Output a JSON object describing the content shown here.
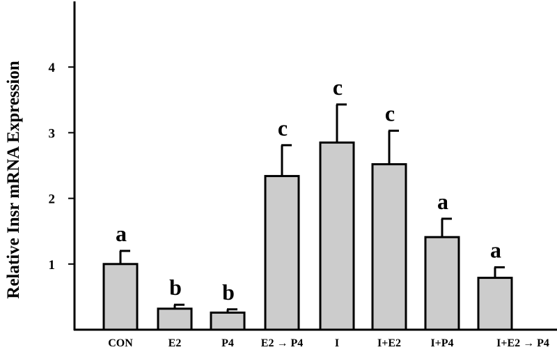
{
  "chart_data": {
    "type": "bar",
    "title": "",
    "xlabel": "",
    "ylabel": "Relative Insr mRNA Expression",
    "ylim": [
      0,
      5
    ],
    "yticks": [
      1,
      2,
      3,
      4
    ],
    "categories": [
      "CON",
      "E2",
      "P4",
      "E2 → P4",
      "I",
      "I+E2",
      "I+P4",
      "I+E2 → P4"
    ],
    "values": [
      1.0,
      0.32,
      0.26,
      2.34,
      2.85,
      2.52,
      1.41,
      0.79
    ],
    "errors": [
      0.2,
      0.06,
      0.05,
      0.47,
      0.58,
      0.51,
      0.28,
      0.16
    ],
    "significance": [
      "a",
      "b",
      "b",
      "c",
      "c",
      "c",
      "a",
      "a"
    ],
    "grid": false,
    "bar_color": "#cccccc",
    "edge_color": "#000000"
  }
}
